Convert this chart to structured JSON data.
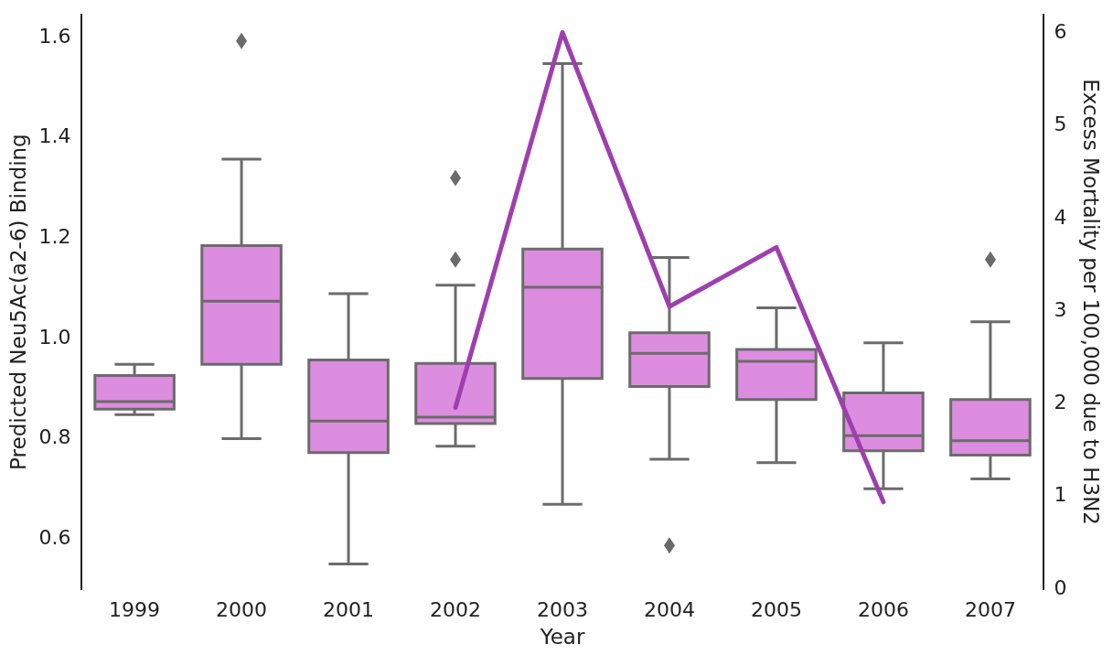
{
  "chart_data": {
    "type": "box",
    "xlabel": "Year",
    "ylabel": "Predicted Neu5Ac(a2-6) Binding",
    "y2label": "Excess Mortality per 100,000 due to H3N2",
    "categories": [
      "1999",
      "2000",
      "2001",
      "2002",
      "2003",
      "2004",
      "2005",
      "2006",
      "2007"
    ],
    "ylim": [
      0.5,
      1.645
    ],
    "yticks": [
      0.6,
      0.8,
      {
        "value": 1,
        "label": "1.0"
      },
      1.2,
      1.4,
      1.6
    ],
    "y2lim": [
      0,
      6.2
    ],
    "y2ticks": [
      0,
      1,
      2,
      3,
      4,
      5,
      6
    ],
    "grid": false,
    "legend": false,
    "marker": "none",
    "series": [
      {
        "color": "#dd8ddf",
        "boxes": [
          {
            "low": 0.848,
            "q1": 0.859,
            "median": 0.874,
            "q3": 0.926,
            "high": 0.948
          },
          {
            "low": 0.8,
            "q1": 0.948,
            "median": 1.074,
            "q3": 1.185,
            "high": 1.357,
            "outliers": [
              1.593
            ]
          },
          {
            "low": 0.55,
            "q1": 0.772,
            "median": 0.835,
            "q3": 0.957,
            "high": 1.089
          },
          {
            "low": 0.785,
            "q1": 0.83,
            "median": 0.843,
            "q3": 0.95,
            "high": 1.106,
            "outliers": [
              1.32,
              1.157
            ]
          },
          {
            "low": 0.669,
            "q1": 0.92,
            "median": 1.102,
            "q3": 1.178,
            "high": 1.548
          },
          {
            "low": 0.759,
            "q1": 0.904,
            "median": 0.97,
            "q3": 1.011,
            "high": 1.161,
            "outliers": [
              0.587
            ]
          },
          {
            "low": 0.752,
            "q1": 0.878,
            "median": 0.954,
            "q3": 0.978,
            "high": 1.061
          },
          {
            "low": 0.7,
            "q1": 0.776,
            "median": 0.806,
            "q3": 0.891,
            "high": 0.991
          },
          {
            "low": 0.72,
            "q1": 0.767,
            "median": 0.796,
            "q3": 0.878,
            "high": 1.033,
            "outliers": [
              1.157
            ]
          }
        ]
      },
      {
        "type": "line",
        "axis": "y2",
        "color": "#9e3fae",
        "values": [
          null,
          null,
          null,
          1.96,
          6.01,
          3.05,
          3.69,
          0.94,
          null
        ]
      }
    ]
  }
}
